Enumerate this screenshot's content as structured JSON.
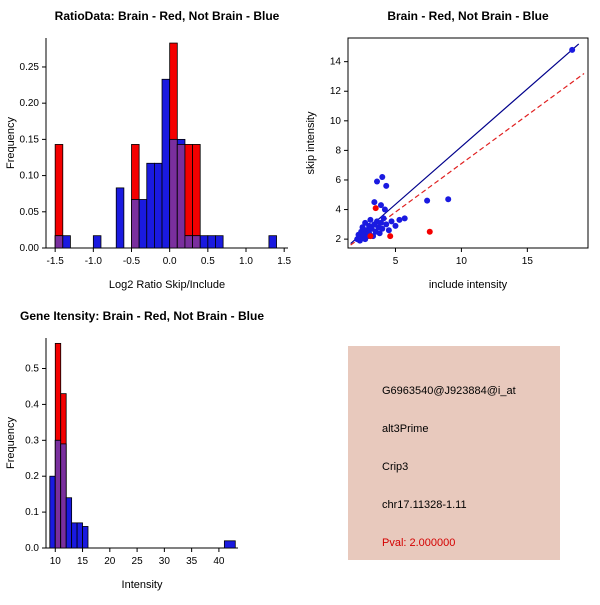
{
  "colors": {
    "red": "#f40000",
    "blue": "#1a1ae0",
    "overlap": "#7a2f9e",
    "line_blue": "#00008b",
    "line_red": "#e02020",
    "axis": "#000000"
  },
  "chart_data": [
    {
      "type": "bar",
      "title": "RatioData: Brain - Red, Not Brain - Blue",
      "xlabel": "Log2 Ratio Skip/Include",
      "ylabel": "Frequency",
      "xlim": [
        -1.62,
        1.55
      ],
      "ylim": [
        0,
        0.29
      ],
      "xticks": {
        "values": [
          -1.5,
          -1.0,
          -0.5,
          0.0,
          0.5,
          1.0,
          1.5
        ],
        "labels": [
          "-1.5",
          "-1.0",
          "-0.5",
          "0.0",
          "0.5",
          "1.0",
          "1.5"
        ]
      },
      "yticks": {
        "values": [
          0,
          0.05,
          0.1,
          0.15,
          0.2,
          0.25
        ],
        "labels": [
          "0.00",
          "0.05",
          "0.10",
          "0.15",
          "0.20",
          "0.25"
        ]
      },
      "bins": [
        {
          "x0": -1.5,
          "x1": -1.4,
          "red": 0.143,
          "blue": 0.017
        },
        {
          "x0": -1.4,
          "x1": -1.3,
          "red": 0,
          "blue": 0.017
        },
        {
          "x0": -1.0,
          "x1": -0.9,
          "red": 0,
          "blue": 0.017
        },
        {
          "x0": -0.7,
          "x1": -0.6,
          "red": 0,
          "blue": 0.083
        },
        {
          "x0": -0.5,
          "x1": -0.4,
          "red": 0.143,
          "blue": 0.067
        },
        {
          "x0": -0.4,
          "x1": -0.3,
          "red": 0,
          "blue": 0.067
        },
        {
          "x0": -0.3,
          "x1": -0.2,
          "red": 0,
          "blue": 0.117
        },
        {
          "x0": -0.2,
          "x1": -0.1,
          "red": 0,
          "blue": 0.117
        },
        {
          "x0": -0.1,
          "x1": 0.0,
          "red": 0,
          "blue": 0.233
        },
        {
          "x0": 0.0,
          "x1": 0.1,
          "red": 0.283,
          "blue": 0.15
        },
        {
          "x0": 0.1,
          "x1": 0.2,
          "red": 0.143,
          "blue": 0.15
        },
        {
          "x0": 0.2,
          "x1": 0.3,
          "red": 0.143,
          "blue": 0.017
        },
        {
          "x0": 0.3,
          "x1": 0.4,
          "red": 0.143,
          "blue": 0.017
        },
        {
          "x0": 0.4,
          "x1": 0.5,
          "red": 0,
          "blue": 0.017
        },
        {
          "x0": 0.5,
          "x1": 0.6,
          "red": 0,
          "blue": 0.017
        },
        {
          "x0": 0.6,
          "x1": 0.7,
          "red": 0,
          "blue": 0.017
        },
        {
          "x0": 1.3,
          "x1": 1.4,
          "red": 0,
          "blue": 0.017
        }
      ]
    },
    {
      "type": "scatter",
      "title": "Brain - Red, Not Brain - Blue",
      "xlabel": "include intensity",
      "ylabel": "skip intensity",
      "xlim": [
        1.4,
        19.6
      ],
      "ylim": [
        1.4,
        15.6
      ],
      "xticks": {
        "values": [
          5,
          10,
          15
        ],
        "labels": [
          "5",
          "10",
          "15"
        ]
      },
      "yticks": {
        "values": [
          2,
          4,
          6,
          8,
          10,
          12,
          14
        ],
        "labels": [
          "2",
          "4",
          "6",
          "8",
          "10",
          "12",
          "14"
        ]
      },
      "points": [
        {
          "x": 2.1,
          "y": 2.0,
          "c": "blue"
        },
        {
          "x": 2.2,
          "y": 2.3,
          "c": "blue"
        },
        {
          "x": 2.3,
          "y": 1.9,
          "c": "blue"
        },
        {
          "x": 2.4,
          "y": 2.5,
          "c": "blue"
        },
        {
          "x": 2.5,
          "y": 2.1,
          "c": "blue"
        },
        {
          "x": 2.5,
          "y": 2.8,
          "c": "blue"
        },
        {
          "x": 2.6,
          "y": 2.3,
          "c": "blue"
        },
        {
          "x": 2.7,
          "y": 2.0,
          "c": "blue"
        },
        {
          "x": 2.7,
          "y": 3.1,
          "c": "blue"
        },
        {
          "x": 2.8,
          "y": 2.6,
          "c": "blue"
        },
        {
          "x": 2.9,
          "y": 2.2,
          "c": "blue"
        },
        {
          "x": 3.0,
          "y": 2.9,
          "c": "blue"
        },
        {
          "x": 3.0,
          "y": 2.4,
          "c": "blue"
        },
        {
          "x": 3.1,
          "y": 3.3,
          "c": "blue"
        },
        {
          "x": 3.2,
          "y": 2.7,
          "c": "blue"
        },
        {
          "x": 3.3,
          "y": 2.2,
          "c": "blue"
        },
        {
          "x": 3.4,
          "y": 3.0,
          "c": "blue"
        },
        {
          "x": 3.5,
          "y": 2.5,
          "c": "blue"
        },
        {
          "x": 3.6,
          "y": 3.2,
          "c": "blue"
        },
        {
          "x": 3.7,
          "y": 2.8,
          "c": "blue"
        },
        {
          "x": 3.8,
          "y": 2.4,
          "c": "blue"
        },
        {
          "x": 3.9,
          "y": 3.1,
          "c": "blue"
        },
        {
          "x": 4.0,
          "y": 2.7,
          "c": "blue"
        },
        {
          "x": 4.1,
          "y": 3.4,
          "c": "blue"
        },
        {
          "x": 4.3,
          "y": 3.0,
          "c": "blue"
        },
        {
          "x": 4.5,
          "y": 2.6,
          "c": "blue"
        },
        {
          "x": 4.7,
          "y": 3.2,
          "c": "blue"
        },
        {
          "x": 5.0,
          "y": 2.9,
          "c": "blue"
        },
        {
          "x": 5.3,
          "y": 3.3,
          "c": "blue"
        },
        {
          "x": 5.7,
          "y": 3.4,
          "c": "blue"
        },
        {
          "x": 3.4,
          "y": 4.5,
          "c": "blue"
        },
        {
          "x": 3.9,
          "y": 4.3,
          "c": "blue"
        },
        {
          "x": 4.2,
          "y": 4.0,
          "c": "blue"
        },
        {
          "x": 3.6,
          "y": 5.9,
          "c": "blue"
        },
        {
          "x": 4.0,
          "y": 6.2,
          "c": "blue"
        },
        {
          "x": 4.3,
          "y": 5.6,
          "c": "blue"
        },
        {
          "x": 7.4,
          "y": 4.6,
          "c": "blue"
        },
        {
          "x": 9.0,
          "y": 4.7,
          "c": "blue"
        },
        {
          "x": 18.4,
          "y": 14.8,
          "c": "blue"
        },
        {
          "x": 3.5,
          "y": 4.1,
          "c": "red"
        },
        {
          "x": 3.1,
          "y": 2.2,
          "c": "red"
        },
        {
          "x": 4.6,
          "y": 2.2,
          "c": "red"
        },
        {
          "x": 7.6,
          "y": 2.5,
          "c": "red"
        }
      ],
      "lines": [
        {
          "x1": 1.6,
          "y1": 1.7,
          "x2": 18.9,
          "y2": 15.2,
          "color": "line_blue",
          "dash": ""
        },
        {
          "x1": 1.6,
          "y1": 1.6,
          "x2": 19.3,
          "y2": 13.2,
          "color": "line_red",
          "dash": "5,3"
        }
      ]
    },
    {
      "type": "bar",
      "title": "Gene Itensity: Brain - Red, Not Brain - Blue",
      "xlabel": "Intensity",
      "ylabel": "Frequency",
      "xlim": [
        8.3,
        43.5
      ],
      "ylim": [
        0,
        0.585
      ],
      "xticks": {
        "values": [
          10,
          15,
          20,
          25,
          30,
          35,
          40
        ],
        "labels": [
          "10",
          "15",
          "20",
          "25",
          "30",
          "35",
          "40"
        ]
      },
      "yticks": {
        "values": [
          0,
          0.1,
          0.2,
          0.3,
          0.4,
          0.5
        ],
        "labels": [
          "0.0",
          "0.1",
          "0.2",
          "0.3",
          "0.4",
          "0.5"
        ]
      },
      "bins": [
        {
          "x0": 9,
          "x1": 10,
          "red": 0,
          "blue": 0.2
        },
        {
          "x0": 10,
          "x1": 11,
          "red": 0.57,
          "blue": 0.3
        },
        {
          "x0": 11,
          "x1": 12,
          "red": 0.43,
          "blue": 0.29
        },
        {
          "x0": 12,
          "x1": 13,
          "red": 0,
          "blue": 0.14
        },
        {
          "x0": 13,
          "x1": 14,
          "red": 0,
          "blue": 0.07
        },
        {
          "x0": 14,
          "x1": 15,
          "red": 0,
          "blue": 0.07
        },
        {
          "x0": 15,
          "x1": 16,
          "red": 0,
          "blue": 0.06
        },
        {
          "x0": 41,
          "x1": 43,
          "red": 0,
          "blue": 0.02
        }
      ]
    }
  ],
  "info_panel": {
    "bg": "#e8c9bd",
    "lines": [
      "G6963540@J923884@i_at",
      "alt3Prime",
      "Crip3",
      "chr17.11328-1.11"
    ],
    "pval": "Pval: 2.000000",
    "pval_color": "#d40000"
  }
}
